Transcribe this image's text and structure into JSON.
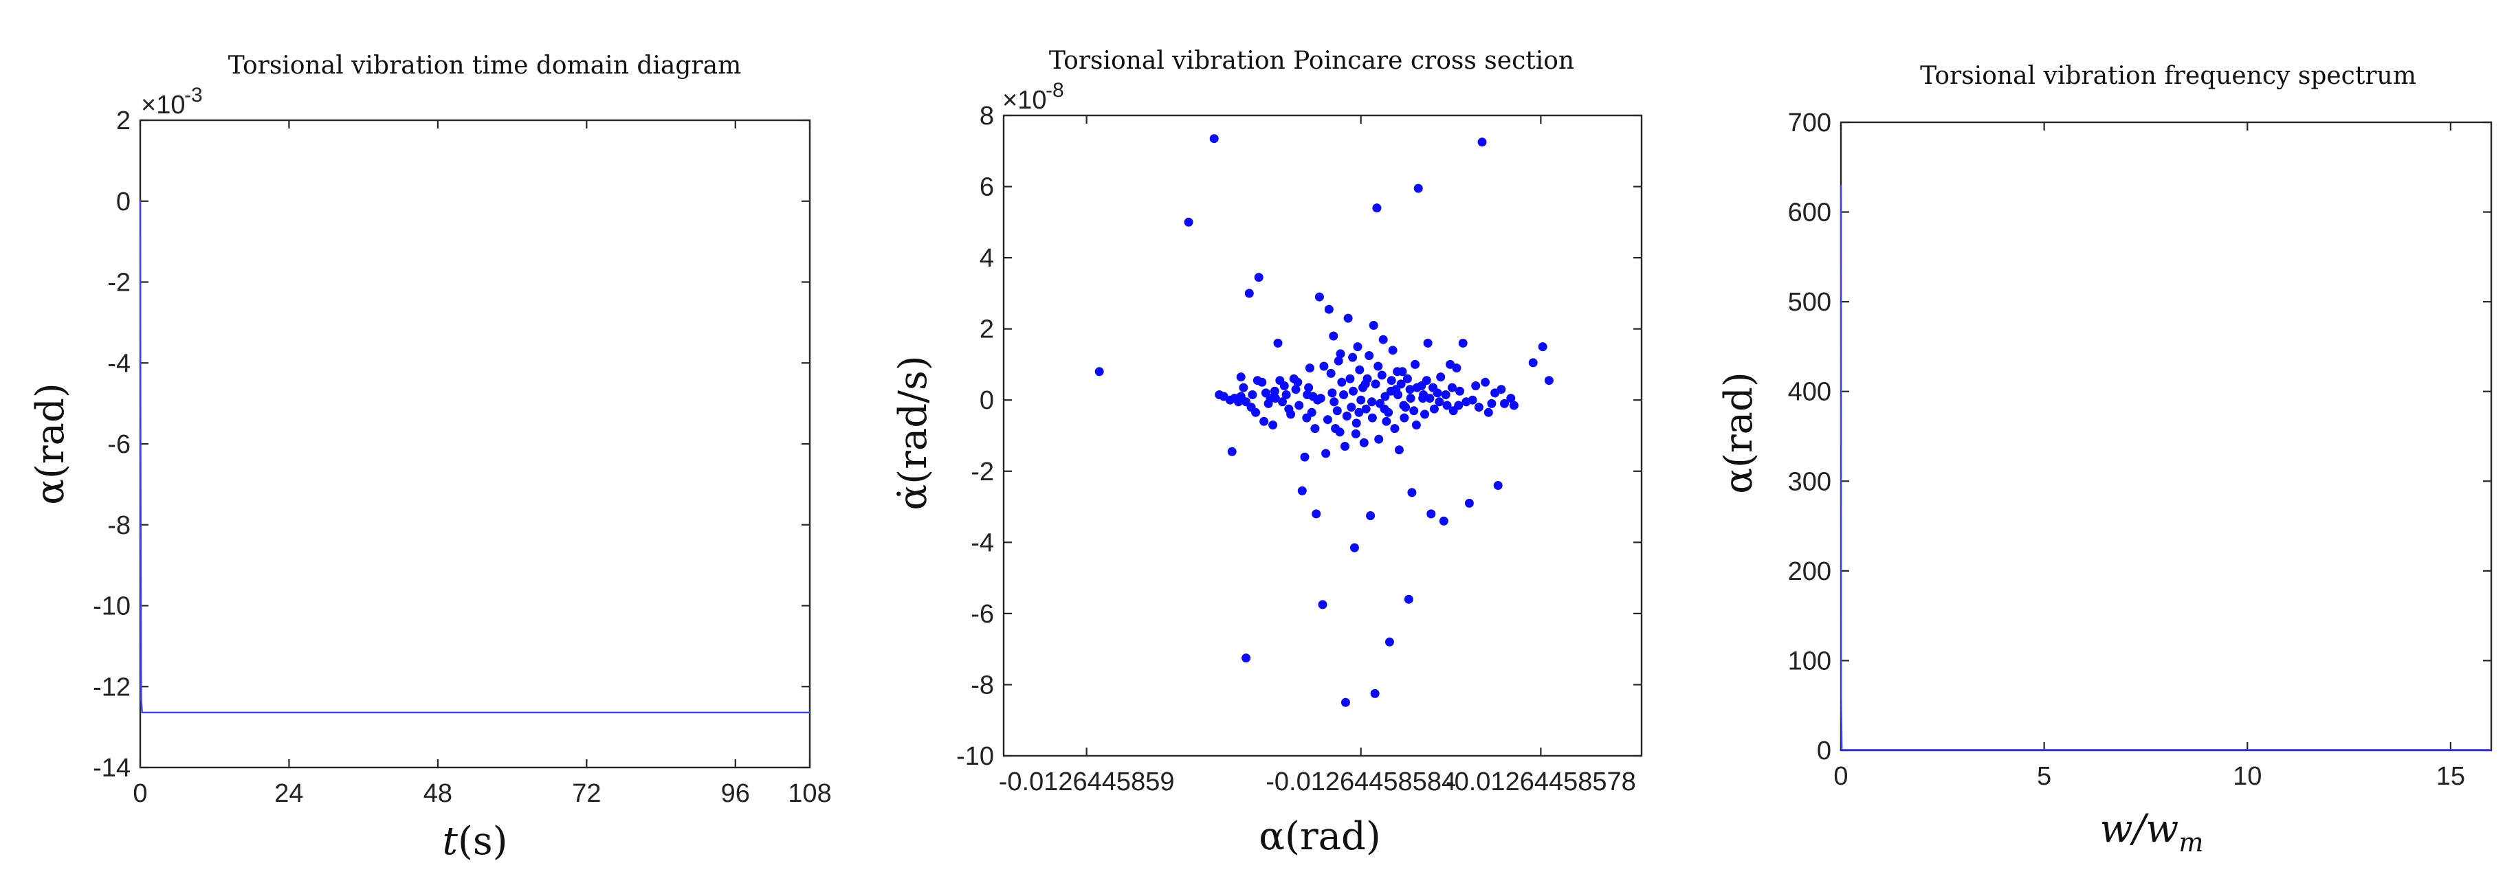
{
  "chart_data": [
    {
      "type": "line",
      "title": "Torsional vibration time domain diagram",
      "xlabel": "t",
      "xlabel_unit": "(s)",
      "ylabel": "α(rad)",
      "y_exponent_base": "×10",
      "y_exponent_power": "-3",
      "xlim": [
        0,
        108
      ],
      "ylim": [
        -14,
        2
      ],
      "xticks": [
        "0",
        "24",
        "48",
        "72",
        "96",
        "108"
      ],
      "xtick_values": [
        0,
        24,
        48,
        72,
        96,
        108
      ],
      "yticks": [
        "2",
        "0",
        "-2",
        "-4",
        "-6",
        "-8",
        "-10",
        "-12",
        "-14"
      ],
      "ytick_values": [
        2,
        0,
        -2,
        -4,
        -6,
        -8,
        -10,
        -12,
        -14
      ],
      "series": [
        {
          "x": [
            0,
            0.05,
            0.15,
            0.3,
            108
          ],
          "y": [
            0,
            -6,
            -12.3,
            -12.64,
            -12.64
          ],
          "color": "#3f3fff"
        }
      ],
      "grid": false
    },
    {
      "type": "scatter",
      "title": "Torsional vibration Poincare cross section",
      "xlabel": "α(rad)",
      "ylabel": "α̇(rad/s)",
      "y_exponent_base": "×10",
      "y_exponent_power": "-8",
      "xticks": [
        "-0.0126445859",
        "-0.0126445858",
        "-0.0126445858"
      ],
      "xtick_values": [
        0,
        0.5,
        1
      ],
      "xtick_display": [
        "-0.0126445859",
        "-0.0126445858",
        "-0.0126445858"
      ],
      "xlim": [
        -0.012644586,
        -0.0126445857
      ],
      "ylim": [
        -10,
        8
      ],
      "yticks": [
        "8",
        "6",
        "4",
        "2",
        "0",
        "-2",
        "-4",
        "-6",
        "-8",
        "-10"
      ],
      "ytick_values": [
        8,
        6,
        4,
        2,
        0,
        -2,
        -4,
        -6,
        -8,
        -10
      ],
      "marker_color": "#0a0aff",
      "points": [
        [
          0.15,
          0.8
        ],
        [
          0.29,
          5.0
        ],
        [
          0.33,
          7.35
        ],
        [
          0.345,
          0.1
        ],
        [
          0.358,
          -1.45
        ],
        [
          0.372,
          0.65
        ],
        [
          0.385,
          3.0
        ],
        [
          0.4,
          3.45
        ],
        [
          0.372,
          0.1
        ],
        [
          0.38,
          -0.05
        ],
        [
          0.39,
          0.15
        ],
        [
          0.395,
          -0.35
        ],
        [
          0.405,
          0.5
        ],
        [
          0.415,
          -0.1
        ],
        [
          0.425,
          0.25
        ],
        [
          0.43,
          1.6
        ],
        [
          0.44,
          0.4
        ],
        [
          0.45,
          -0.4
        ],
        [
          0.455,
          0.6
        ],
        [
          0.468,
          -2.55
        ],
        [
          0.472,
          -1.6
        ],
        [
          0.475,
          -0.5
        ],
        [
          0.48,
          0.9
        ],
        [
          0.485,
          0.1
        ],
        [
          0.49,
          -3.2
        ],
        [
          0.495,
          2.9
        ],
        [
          0.5,
          -5.75
        ],
        [
          0.505,
          -1.5
        ],
        [
          0.51,
          2.55
        ],
        [
          0.515,
          0.2
        ],
        [
          0.52,
          -0.8
        ],
        [
          0.525,
          1.1
        ],
        [
          0.53,
          0.5
        ],
        [
          0.535,
          -1.3
        ],
        [
          0.54,
          2.3
        ],
        [
          0.545,
          -0.2
        ],
        [
          0.55,
          -4.15
        ],
        [
          0.555,
          1.5
        ],
        [
          0.56,
          0.0
        ],
        [
          0.565,
          -1.2
        ],
        [
          0.57,
          0.6
        ],
        [
          0.575,
          -3.25
        ],
        [
          0.58,
          2.1
        ],
        [
          0.585,
          5.4
        ],
        [
          0.59,
          -0.1
        ],
        [
          0.595,
          1.7
        ],
        [
          0.6,
          -0.6
        ],
        [
          0.605,
          -6.8
        ],
        [
          0.61,
          1.4
        ],
        [
          0.615,
          0.3
        ],
        [
          0.62,
          -1.4
        ],
        [
          0.625,
          0.8
        ],
        [
          0.63,
          -0.2
        ],
        [
          0.635,
          -5.6
        ],
        [
          0.64,
          -2.6
        ],
        [
          0.645,
          1.0
        ],
        [
          0.65,
          5.95
        ],
        [
          0.655,
          0.4
        ],
        [
          0.66,
          -0.4
        ],
        [
          0.665,
          1.6
        ],
        [
          0.67,
          -3.2
        ],
        [
          0.68,
          0.2
        ],
        [
          0.69,
          -3.4
        ],
        [
          0.7,
          1.0
        ],
        [
          0.705,
          -0.3
        ],
        [
          0.71,
          0.9
        ],
        [
          0.72,
          1.6
        ],
        [
          0.73,
          -2.9
        ],
        [
          0.735,
          0.0
        ],
        [
          0.745,
          -0.2
        ],
        [
          0.75,
          7.25
        ],
        [
          0.755,
          0.5
        ],
        [
          0.76,
          -0.35
        ],
        [
          0.77,
          0.2
        ],
        [
          0.775,
          -2.4
        ],
        [
          0.785,
          -0.1
        ],
        [
          0.83,
          1.05
        ],
        [
          0.845,
          1.5
        ],
        [
          0.855,
          0.55
        ],
        [
          0.418,
          0.05
        ],
        [
          0.422,
          -0.7
        ],
        [
          0.433,
          0.55
        ],
        [
          0.447,
          -0.25
        ],
        [
          0.458,
          0.3
        ],
        [
          0.463,
          -0.15
        ],
        [
          0.478,
          0.35
        ],
        [
          0.488,
          -0.8
        ],
        [
          0.497,
          0.05
        ],
        [
          0.502,
          0.95
        ],
        [
          0.508,
          -0.55
        ],
        [
          0.513,
          0.75
        ],
        [
          0.518,
          -0.05
        ],
        [
          0.523,
          -0.3
        ],
        [
          0.528,
          1.3
        ],
        [
          0.533,
          0.15
        ],
        [
          0.538,
          -0.45
        ],
        [
          0.543,
          0.6
        ],
        [
          0.548,
          0.25
        ],
        [
          0.553,
          -0.65
        ],
        [
          0.558,
          0.85
        ],
        [
          0.563,
          0.35
        ],
        [
          0.568,
          -0.25
        ],
        [
          0.573,
          1.25
        ],
        [
          0.578,
          -0.5
        ],
        [
          0.583,
          0.45
        ],
        [
          0.588,
          -1.1
        ],
        [
          0.593,
          0.7
        ],
        [
          0.598,
          0.1
        ],
        [
          0.603,
          -0.35
        ],
        [
          0.608,
          0.55
        ],
        [
          0.613,
          -0.8
        ],
        [
          0.618,
          0.15
        ],
        [
          0.623,
          0.45
        ],
        [
          0.628,
          -0.5
        ],
        [
          0.633,
          0.6
        ],
        [
          0.638,
          0.05
        ],
        [
          0.643,
          -0.3
        ],
        [
          0.648,
          0.35
        ],
        [
          0.658,
          0.15
        ],
        [
          0.668,
          0.05
        ],
        [
          0.675,
          -0.25
        ],
        [
          0.685,
          0.65
        ],
        [
          0.695,
          -0.15
        ],
        [
          0.715,
          0.25
        ],
        [
          0.725,
          -0.05
        ],
        [
          0.74,
          0.4
        ],
        [
          0.765,
          -0.1
        ],
        [
          0.78,
          0.3
        ],
        [
          0.795,
          0.05
        ],
        [
          0.8,
          -0.15
        ],
        [
          0.368,
          -0.05
        ],
        [
          0.376,
          0.35
        ],
        [
          0.388,
          -0.2
        ],
        [
          0.398,
          0.55
        ],
        [
          0.408,
          -0.6
        ],
        [
          0.411,
          0.2
        ],
        [
          0.437,
          -0.05
        ],
        [
          0.443,
          0.15
        ],
        [
          0.461,
          0.5
        ],
        [
          0.483,
          -0.35
        ],
        [
          0.517,
          1.8
        ],
        [
          0.527,
          -0.9
        ],
        [
          0.547,
          1.2
        ],
        [
          0.557,
          -0.35
        ],
        [
          0.567,
          0.45
        ],
        [
          0.577,
          -0.05
        ],
        [
          0.587,
          0.95
        ],
        [
          0.597,
          -0.25
        ],
        [
          0.607,
          0.25
        ],
        [
          0.617,
          0.8
        ],
        [
          0.627,
          -0.15
        ],
        [
          0.637,
          0.3
        ],
        [
          0.647,
          -0.7
        ],
        [
          0.657,
          0.05
        ],
        [
          0.663,
          0.55
        ],
        [
          0.673,
          0.35
        ],
        [
          0.683,
          -0.05
        ],
        [
          0.693,
          0.15
        ],
        [
          0.703,
          0.35
        ],
        [
          0.713,
          -0.15
        ],
        [
          0.38,
          -7.25
        ],
        [
          0.552,
          -0.95
        ],
        [
          0.536,
          -8.5
        ],
        [
          0.582,
          -8.25
        ],
        [
          0.355,
          0.0
        ],
        [
          0.338,
          0.15
        ],
        [
          0.362,
          0.05
        ],
        [
          0.426,
          0.05
        ],
        [
          0.476,
          0.15
        ],
        [
          0.492,
          0.0
        ]
      ],
      "grid": false
    },
    {
      "type": "line",
      "title": "Torsional vibration frequency spectrum",
      "xlabel": "w/w",
      "xlabel_sub": "m",
      "ylabel": "α(rad)",
      "xlim": [
        0,
        16
      ],
      "ylim": [
        0,
        700
      ],
      "xticks": [
        "0",
        "5",
        "10",
        "15"
      ],
      "xtick_values": [
        0,
        5,
        10,
        15
      ],
      "yticks": [
        "700",
        "600",
        "500",
        "400",
        "300",
        "200",
        "100",
        "0"
      ],
      "ytick_values": [
        700,
        600,
        500,
        400,
        300,
        200,
        100,
        0
      ],
      "series": [
        {
          "x": [
            0,
            0.005,
            0.02,
            16
          ],
          "y": [
            630,
            60,
            0.5,
            0.5
          ],
          "color": "#3f3fff"
        }
      ],
      "grid": false
    }
  ]
}
